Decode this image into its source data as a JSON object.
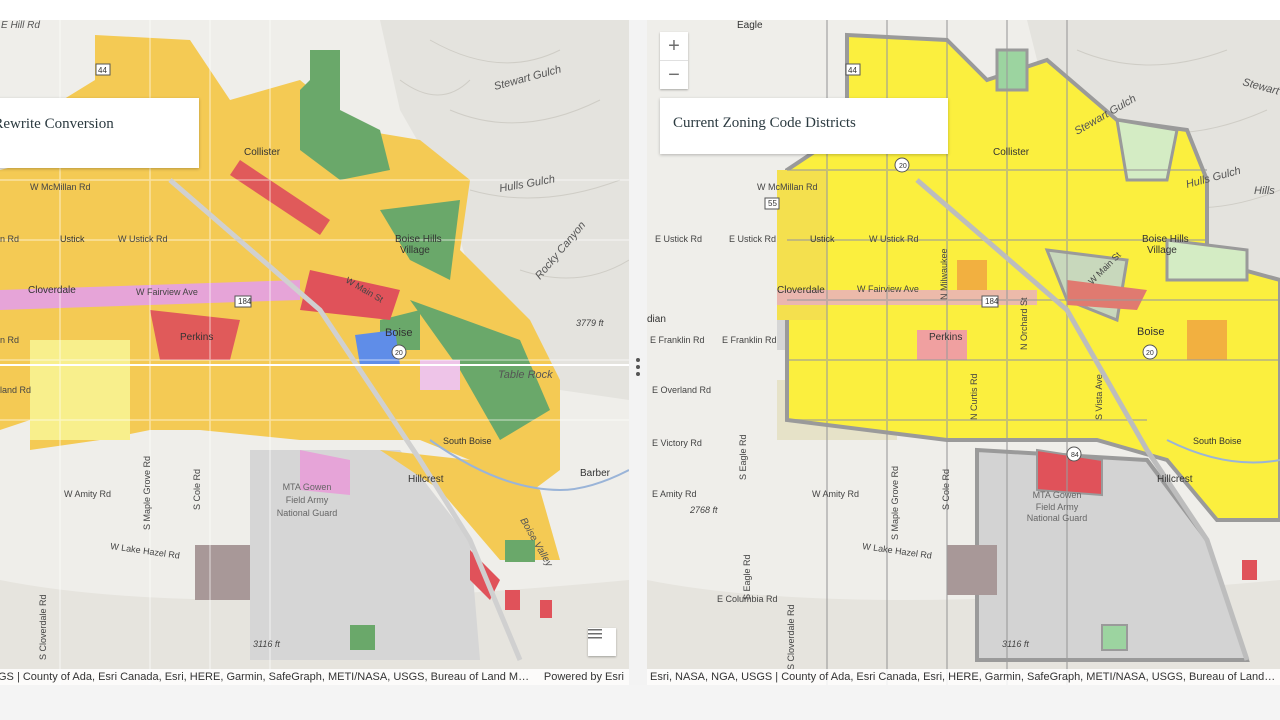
{
  "left_map": {
    "title": "Zoning Code Rewrite Conversion",
    "title_visible": "ing Code Rewrite Conversion",
    "attribution": "GS | County of Ada, Esri Canada, Esri, HERE, Garmin, SafeGraph, METI/NASA, USGS, Bureau of Land Managem...",
    "powered_by": "Powered by Esri",
    "labels": {
      "hill_rd": "E Hill Rd",
      "stewart_gulch": "Stewart Gulch",
      "collister": "Collister",
      "hulls_gulch": "Hulls Gulch",
      "boise_hills": "Boise Hills",
      "village": "Village",
      "rocky_canyon": "Rocky Canyon",
      "mcmillan": "W McMillan Rd",
      "ustick": "Ustick",
      "ustick_rd": "W Ustick Rd",
      "cloverdale": "Cloverdale",
      "fairview": "W Fairview Ave",
      "main_st": "W Main St",
      "boise": "Boise",
      "perkins": "Perkins",
      "elev1": "3779 ft",
      "table_rock": "Table Rock",
      "south_boise": "South Boise",
      "hillcrest": "Hillcrest",
      "barber": "Barber",
      "amity": "W Amity Rd",
      "maple_grove": "S Maple Grove Rd",
      "cole": "S Cole Rd",
      "mta1": "MTA Gowen",
      "mta2": "Field Army",
      "mta3": "National Guard",
      "lake_hazel": "W Lake Hazel Rd",
      "boise_valley": "Boise Valley",
      "elev2": "3116 ft",
      "cloverdale_rd": "S Cloverdale Rd",
      "ln_rd": "n Rd",
      "land_rd": "land Rd",
      "n_rd": "n Rd",
      "r_44": "44",
      "r_184": "184",
      "r_20": "20"
    }
  },
  "right_map": {
    "title": "Current Zoning Code Districts",
    "attribution": "Esri, NASA, NGA, USGS | County of Ada, Esri Canada, Esri, HERE, Garmin, SafeGraph, METI/NASA, USGS, Bureau of Land Managem...",
    "zoom_in": "+",
    "zoom_out": "−",
    "labels": {
      "eagle": "Eagle",
      "stewart": "Stewart",
      "stewart_gulch": "Stewart Gulch",
      "collister": "Collister",
      "hulls_gulch": "Hulls Gulch",
      "hills": "Hills",
      "mcmillan": "W McMillan Rd",
      "ustick_e": "E Ustick Rd",
      "ustick_e2": "E Ustick Rd",
      "ustick": "Ustick",
      "ustick_w": "W Ustick Rd",
      "boise_hills": "Boise Hills",
      "village": "Village",
      "cloverdale": "Cloverdale",
      "fairview": "W Fairview Ave",
      "main_st": "W Main St",
      "dian": "dian",
      "franklin_e": "E Franklin Rd",
      "franklin_e2": "E Franklin Rd",
      "perkins": "Perkins",
      "boise": "Boise",
      "overland": "E Overland Rd",
      "victory": "E Victory Rd",
      "south_boise": "South Boise",
      "amity_e": "E Amity Rd",
      "amity_w": "W Amity Rd",
      "elev1": "2768 ft",
      "hillcrest": "Hillcrest",
      "mta1": "MTA Gowen",
      "mta2": "Field Army",
      "mta3": "National Guard",
      "lake_hazel": "W Lake Hazel Rd",
      "columbia": "E Columbia Rd",
      "elev2": "3116 ft",
      "eagle_rd": "S Eagle Rd",
      "eagle_rd2": "S Eagle Rd",
      "maple_grove": "S Maple Grove Rd",
      "cole": "S Cole Rd",
      "cloverdale_rd": "S Cloverdale Rd",
      "milwaukee": "N Milwaukee",
      "orchard": "N Orchard St",
      "vista": "S Vista Ave",
      "curtis": "N Curtis Rd",
      "r_44": "44",
      "r_20": "20",
      "r_55": "55",
      "r_184": "184",
      "r_84": "84",
      "r_20b": "20"
    }
  },
  "colors": {
    "yellow": "#f4d35e",
    "bright_yellow": "#fbef3e",
    "green": "#6aa86a",
    "red": "#e0525a",
    "pink": "#e8a0d8",
    "blue": "#5f8de8",
    "gray_zone": "#cfcfcf",
    "outline": "#9a9a9a"
  }
}
